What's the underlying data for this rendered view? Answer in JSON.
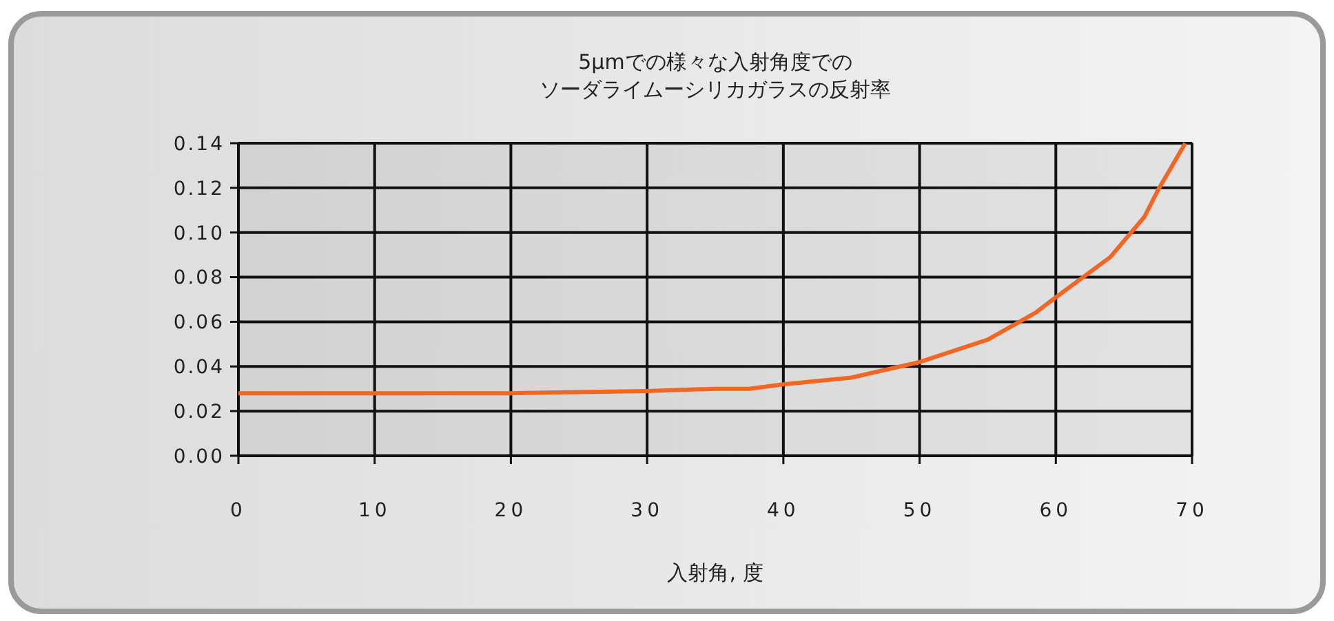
{
  "chart_data": {
    "type": "line",
    "title": "5µmでの様々な入射角度での",
    "subtitle": "ソーダライムーシリカガラスの反射率",
    "xlabel": "入射角, 度",
    "x": [
      0,
      10,
      15,
      20,
      25,
      30,
      35,
      37.5,
      40,
      45,
      50,
      55,
      58.5,
      60,
      64,
      66.5,
      67.5,
      69.5
    ],
    "series": [
      {
        "color": "#f26522",
        "values": [
          0.028,
          0.028,
          0.028,
          0.028,
          0.0285,
          0.029,
          0.03,
          0.03,
          0.032,
          0.035,
          0.042,
          0.052,
          0.064,
          0.071,
          0.089,
          0.107,
          0.119,
          0.14
        ]
      }
    ],
    "xlim": [
      0,
      70
    ],
    "xticks": [
      0,
      10,
      20,
      30,
      40,
      50,
      60,
      70
    ],
    "ylim": [
      0,
      0.14
    ],
    "yticks": [
      {
        "value": 0,
        "label": "0.00"
      },
      {
        "value": 0.02,
        "label": "0.02"
      },
      {
        "value": 0.04,
        "label": "0.04"
      },
      {
        "value": 0.06,
        "label": "0.06"
      },
      {
        "value": 0.08,
        "label": "0.08"
      },
      {
        "value": 0.1,
        "label": "0.10"
      },
      {
        "value": 0.12,
        "label": "0.12"
      },
      {
        "value": 0.14,
        "label": "0.14"
      }
    ],
    "grid": true,
    "marker": "none",
    "line_style": "solid"
  }
}
